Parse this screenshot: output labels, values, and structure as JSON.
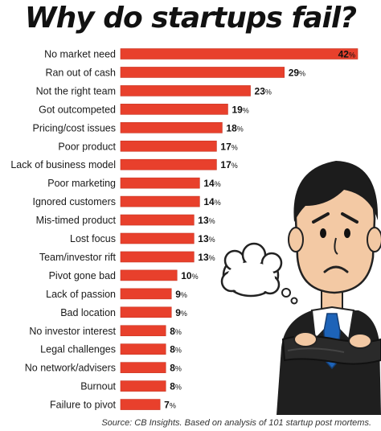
{
  "page": {
    "title": "Why do startups fail?",
    "source": "Source: CB Insights. Based on analysis of 101 startup post mortems."
  },
  "colors": {
    "bar": "#e8402c",
    "bar_edge": "#c73220",
    "text": "#1a1a1a"
  },
  "chart_data": {
    "type": "bar",
    "orientation": "horizontal",
    "title": "Why do startups fail?",
    "value_suffix": "%",
    "categories": [
      "No market need",
      "Ran out of cash",
      "Not the right team",
      "Got outcompeted",
      "Pricing/cost issues",
      "Poor product",
      "Lack of business model",
      "Poor marketing",
      "Ignored customers",
      "Mis-timed product",
      "Lost focus",
      "Team/investor rift",
      "Pivot gone bad",
      "Lack of passion",
      "Bad location",
      "No investor interest",
      "Legal challenges",
      "No network/advisers",
      "Burnout",
      "Failure to pivot"
    ],
    "values": [
      42,
      29,
      23,
      19,
      18,
      17,
      17,
      14,
      14,
      13,
      13,
      13,
      10,
      9,
      9,
      8,
      8,
      8,
      8,
      7
    ],
    "grid": false,
    "legend": "none"
  },
  "illustration": {
    "icon": "worried-businessman-icon",
    "thought_bubble": "thought-bubble-icon"
  }
}
